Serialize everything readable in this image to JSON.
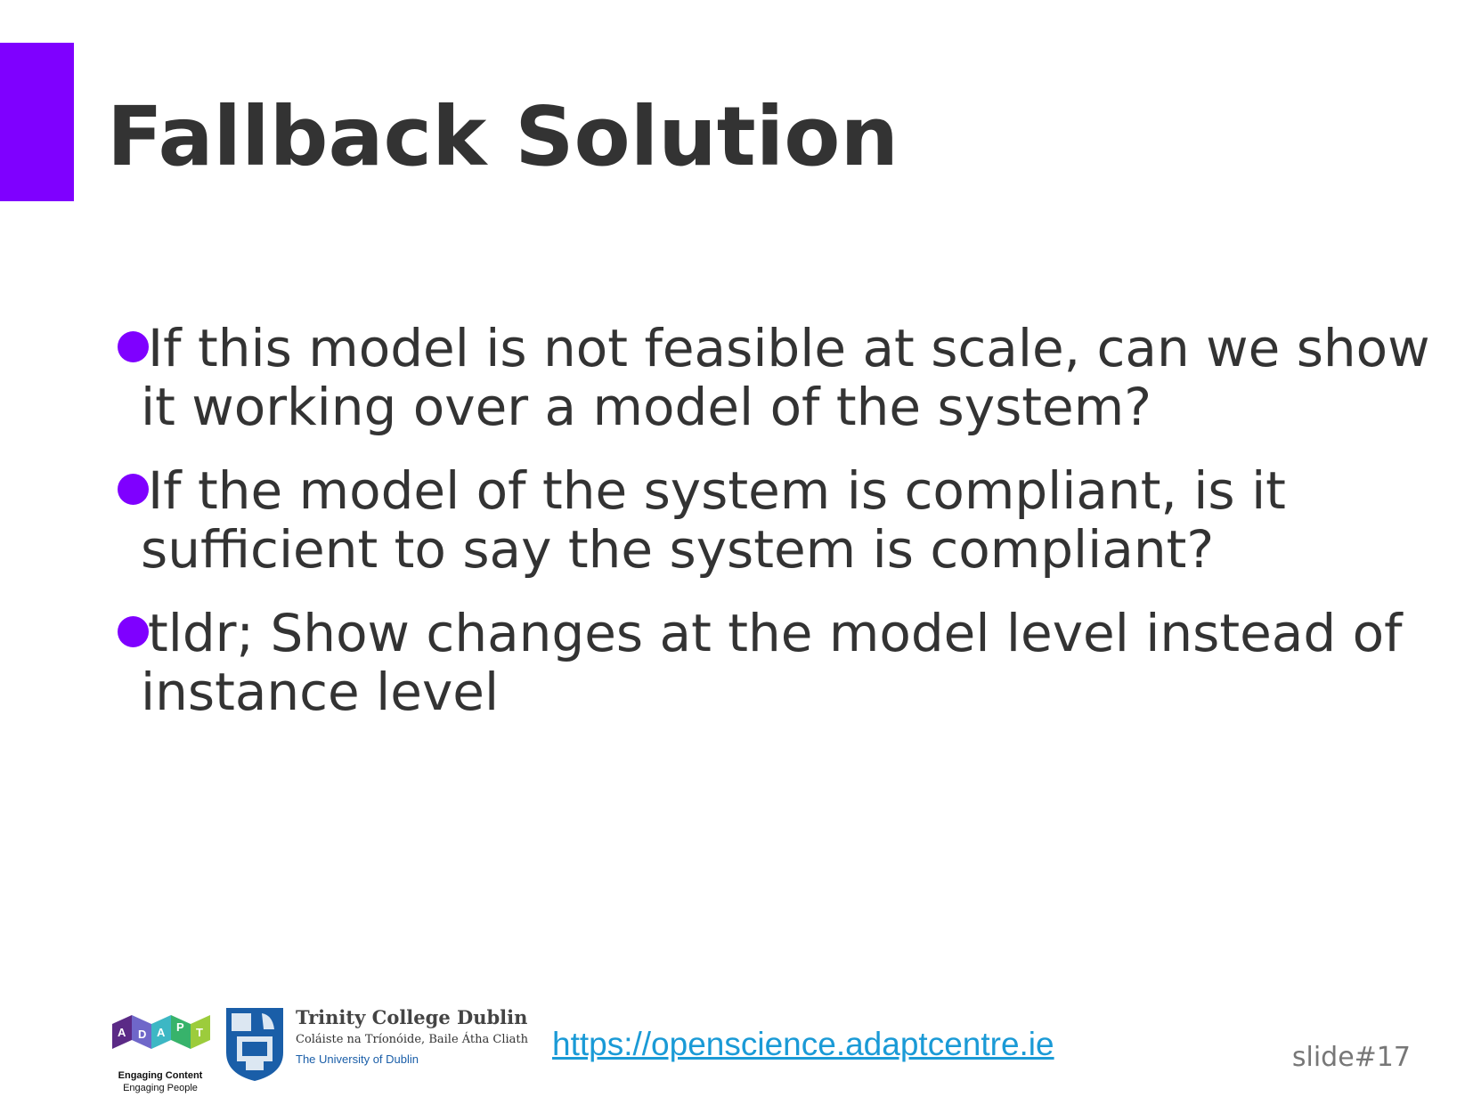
{
  "slide": {
    "title": "Fallback Solution",
    "accent_color": "#7f00ff",
    "bullets": [
      {
        "text": "If this model is not feasible at scale, can we show it working over a model of the system?"
      },
      {
        "text": "If the model of the system is compliant, is it sufficient to say the system is compliant?"
      },
      {
        "text": "tldr; Show changes at the model level instead of instance level"
      }
    ]
  },
  "footer": {
    "adapt_logo": {
      "letters": [
        "A",
        "D",
        "A",
        "P",
        "T"
      ],
      "tagline_line1": "Engaging Content",
      "tagline_line2": "Engaging People"
    },
    "tcd_logo": {
      "name": "Trinity College Dublin",
      "irish_name": "Coláiste na Tríonóide, Baile Átha Cliath",
      "subtitle": "The University of Dublin"
    },
    "link_text": "https://openscience.adaptcentre.ie",
    "slide_number": "slide#17"
  }
}
